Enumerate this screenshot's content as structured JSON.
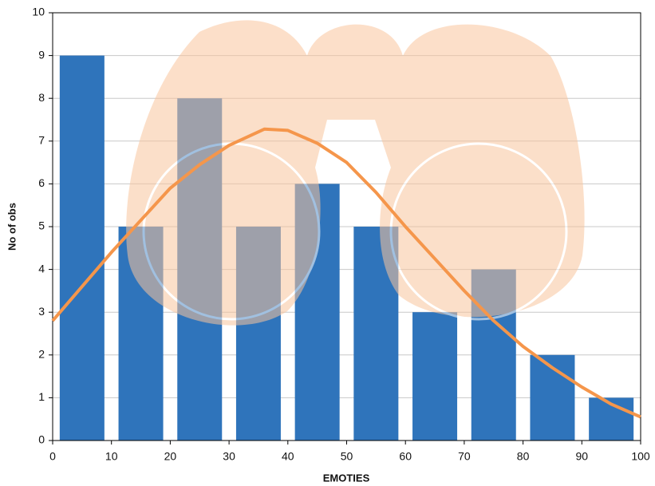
{
  "chart_data": {
    "type": "histogram",
    "xlabel": "EMOTIES",
    "ylabel": "No of obs",
    "bins": [
      0,
      10,
      20,
      30,
      40,
      50,
      60,
      70,
      80,
      90,
      100
    ],
    "values": [
      9,
      5,
      8,
      5,
      6,
      5,
      3,
      4,
      2,
      1
    ],
    "color": "#2f74bb",
    "curve": {
      "x": [
        0,
        5,
        10,
        15,
        20,
        25,
        30,
        36,
        40,
        45,
        50,
        55,
        60,
        65,
        70,
        75,
        80,
        85,
        90,
        95,
        100
      ],
      "values": [
        2.8,
        3.6,
        4.4,
        5.15,
        5.9,
        6.45,
        6.9,
        7.28,
        7.25,
        6.95,
        6.5,
        5.8,
        5.0,
        4.25,
        3.5,
        2.8,
        2.2,
        1.7,
        1.25,
        0.85,
        0.55
      ],
      "color": "#f5964b"
    },
    "xlim": [
      0,
      100
    ],
    "ylim": [
      0,
      10
    ],
    "xticks": [
      0,
      10,
      20,
      30,
      40,
      50,
      60,
      70,
      80,
      90,
      100
    ],
    "yticks": [
      0,
      1,
      2,
      3,
      4,
      5,
      6,
      7,
      8,
      9,
      10
    ],
    "grid": true
  }
}
